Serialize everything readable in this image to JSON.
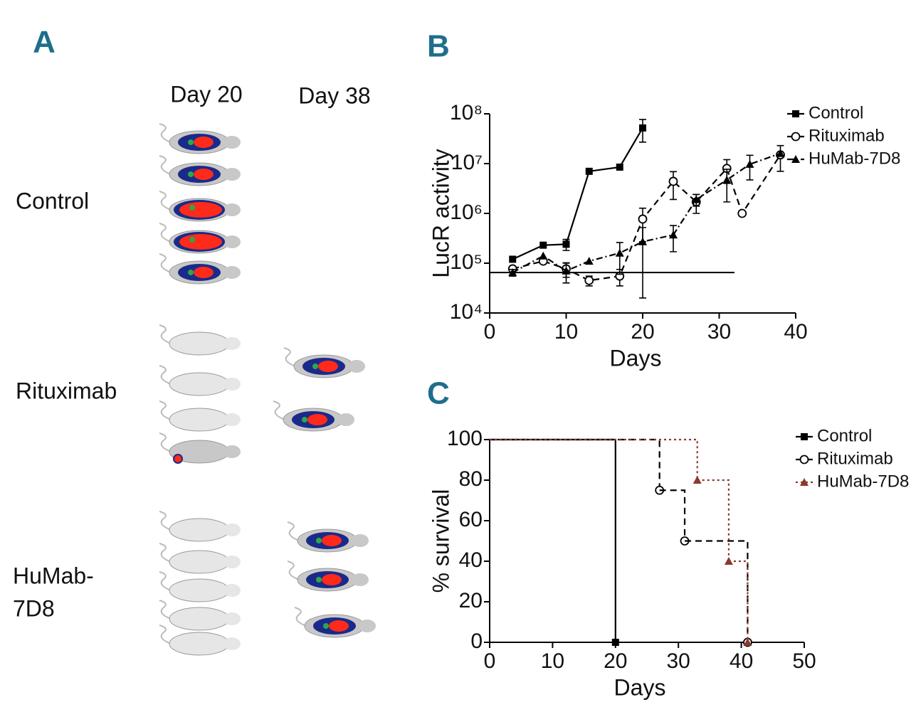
{
  "panel_a": {
    "label": "A",
    "columns": [
      "Day 20",
      "Day 38"
    ],
    "rows": [
      {
        "lines": [
          "Control"
        ]
      },
      {
        "lines": [
          "Rituximab"
        ]
      },
      {
        "lines": [
          "HuMab-",
          "7D8"
        ]
      }
    ]
  },
  "chart_data": [
    {
      "panel": "B",
      "type": "line",
      "xlabel": "Days",
      "ylabel": "LucR activity",
      "log_y": true,
      "xlim": [
        0,
        40
      ],
      "xticks": [
        0,
        10,
        20,
        30,
        40
      ],
      "ylim": [
        10000,
        100000000
      ],
      "yticks": [
        {
          "value": 10000,
          "label": "10⁴"
        },
        {
          "value": 100000,
          "label": "10⁵"
        },
        {
          "value": 1000000,
          "label": "10⁶"
        },
        {
          "value": 10000000,
          "label": "10⁷"
        },
        {
          "value": 100000000,
          "label": "10⁸"
        }
      ],
      "reference_line": {
        "y": 65000,
        "x": [
          0,
          32
        ]
      },
      "legend": "upper right",
      "series": [
        {
          "name": "Control",
          "color": "#000000",
          "line_style": "solid",
          "marker": "square",
          "x": [
            3,
            7,
            10,
            13,
            17,
            20
          ],
          "values": [
            120000,
            230000,
            240000,
            7000000,
            8500000,
            52000000
          ],
          "errors": [
            null,
            null,
            60000,
            null,
            null,
            25000000
          ]
        },
        {
          "name": "Rituximab",
          "color": "#000000",
          "line_style": "dashed",
          "marker": "circle-open",
          "x": [
            3,
            7,
            10,
            13,
            17,
            20,
            24,
            27,
            31,
            33,
            38
          ],
          "values": [
            77000,
            110000,
            77000,
            45000,
            55000,
            770000,
            4400000,
            1700000,
            8000000,
            1000000,
            15000000
          ],
          "errors": [
            null,
            null,
            25000,
            10000,
            20000,
            500000,
            2500000,
            700000,
            4000000,
            null,
            8000000
          ]
        },
        {
          "name": "HuMab-7D8",
          "color": "#000000",
          "line_style": "dashdot",
          "marker": "triangle",
          "x": [
            3,
            7,
            10,
            13,
            17,
            20,
            24,
            27,
            31,
            34,
            38
          ],
          "values": [
            65000,
            140000,
            70000,
            110000,
            160000,
            270000,
            370000,
            1900000,
            4700000,
            9700000,
            16000000
          ],
          "errors": [
            10000,
            null,
            30000,
            null,
            100000,
            250000,
            200000,
            500000,
            3000000,
            5000000,
            null
          ]
        }
      ]
    },
    {
      "panel": "C",
      "type": "step",
      "xlabel": "Days",
      "ylabel": "% survival",
      "xlim": [
        0,
        50
      ],
      "xticks": [
        0,
        10,
        20,
        30,
        40,
        50
      ],
      "ylim": [
        0,
        100
      ],
      "yticks": [
        0,
        20,
        40,
        60,
        80,
        100
      ],
      "legend": "upper right",
      "series": [
        {
          "name": "Control",
          "color": "#000000",
          "line_style": "solid",
          "marker": "square",
          "x": [
            0,
            20
          ],
          "values": [
            100,
            0
          ]
        },
        {
          "name": "Rituximab",
          "color": "#000000",
          "line_style": "dashed",
          "marker": "circle-open",
          "x": [
            0,
            27,
            31,
            41
          ],
          "values": [
            100,
            75,
            50,
            0
          ]
        },
        {
          "name": "HuMab-7D8",
          "color": "#8a3a2a",
          "line_style": "dotted",
          "marker": "triangle",
          "x": [
            0,
            33,
            38,
            41
          ],
          "values": [
            100,
            80,
            40,
            0
          ]
        }
      ]
    }
  ]
}
